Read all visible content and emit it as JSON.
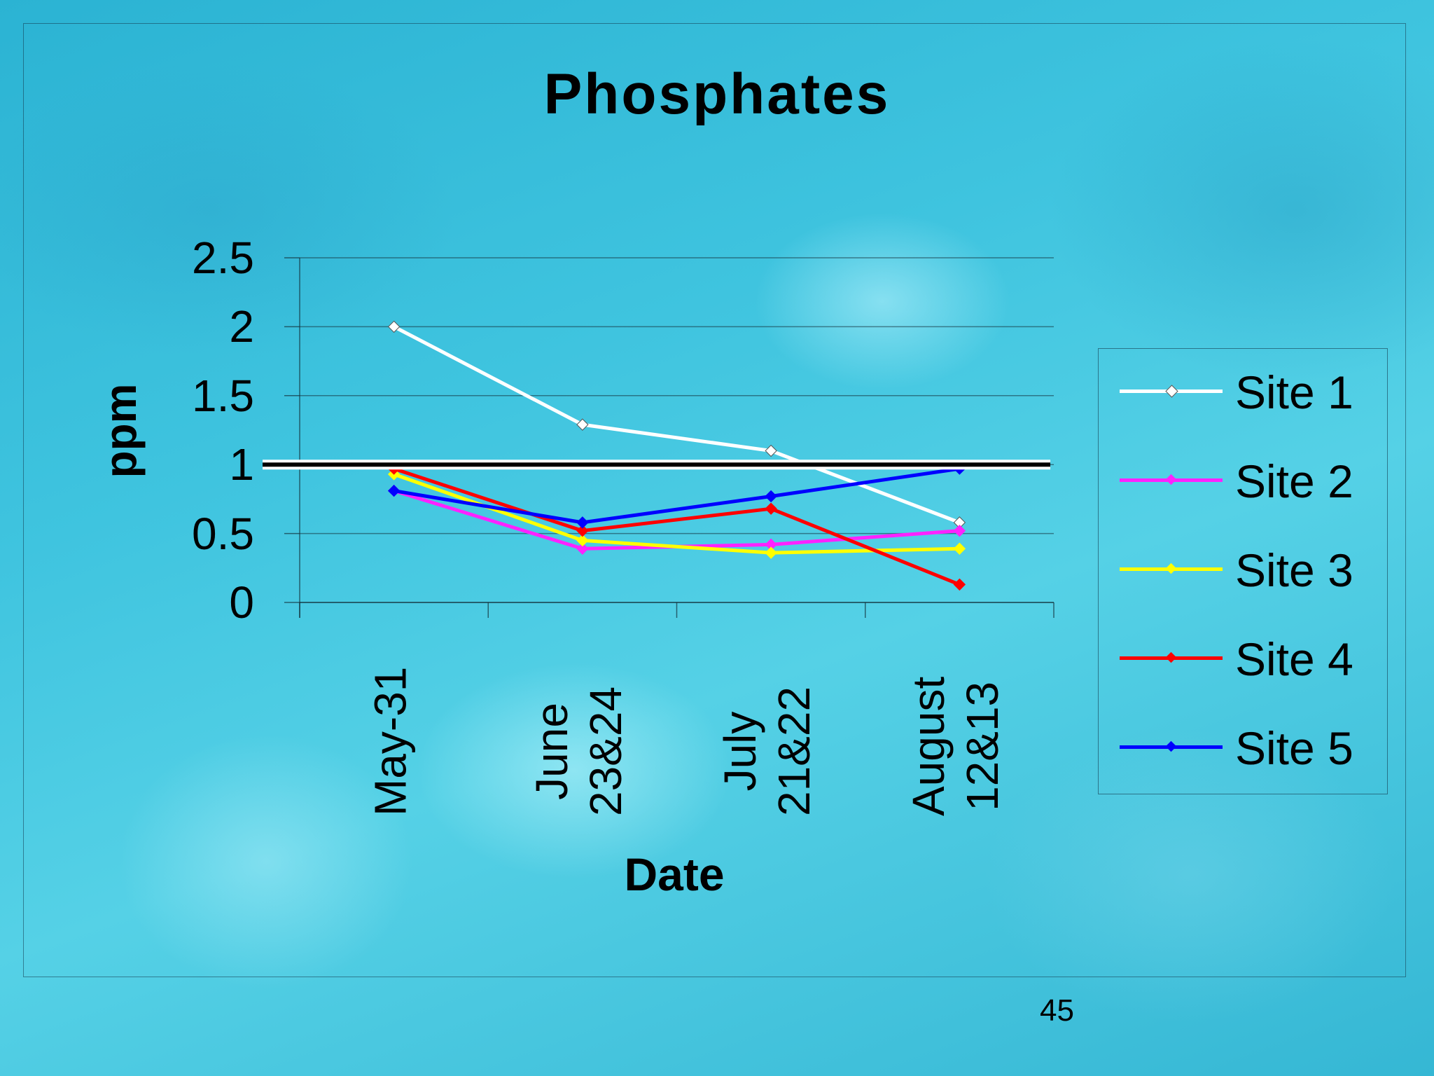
{
  "slide": {
    "page_number": "45"
  },
  "chart_data": {
    "type": "line",
    "title": "Phosphates",
    "xlabel": "Date",
    "ylabel": "ppm",
    "categories": [
      "May-31",
      "June 23&24",
      "July 21&22",
      "August 12&13"
    ],
    "category_lines": [
      [
        "May-31"
      ],
      [
        "June",
        "23&24"
      ],
      [
        "July",
        "21&22"
      ],
      [
        "August",
        "12&13"
      ]
    ],
    "ylim": [
      0,
      2.5
    ],
    "yticks": [
      "0",
      "0.5",
      "1",
      "1.5",
      "2",
      "2.5"
    ],
    "reference_line": 1.0,
    "grid": true,
    "legend_position": "right",
    "series": [
      {
        "name": "Site 1",
        "color": "#ffffff",
        "values": [
          2.0,
          1.29,
          1.1,
          0.58
        ]
      },
      {
        "name": "Site 2",
        "color": "#ff22ff",
        "values": [
          0.81,
          0.39,
          0.42,
          0.52
        ]
      },
      {
        "name": "Site 3",
        "color": "#ffff00",
        "values": [
          0.93,
          0.45,
          0.36,
          0.39
        ]
      },
      {
        "name": "Site 4",
        "color": "#ff0000",
        "values": [
          0.97,
          0.52,
          0.68,
          0.13
        ]
      },
      {
        "name": "Site 5",
        "color": "#0000ff",
        "values": [
          0.81,
          0.58,
          0.77,
          0.97
        ]
      }
    ]
  }
}
